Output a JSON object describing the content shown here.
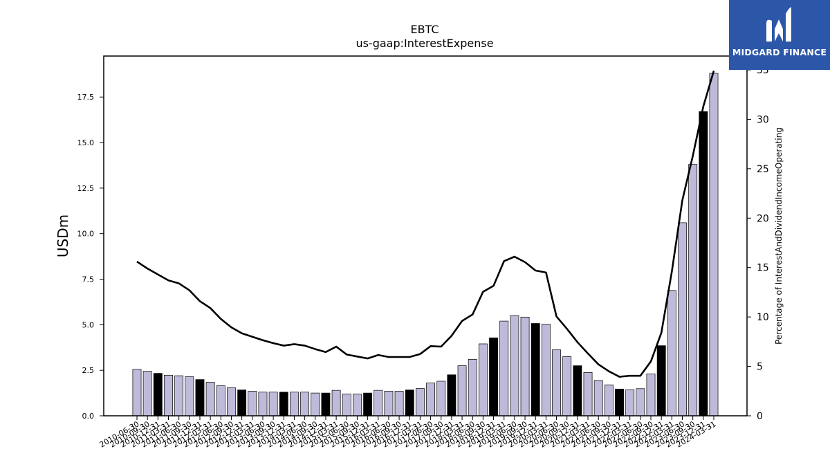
{
  "chart_data": {
    "type": "bar",
    "title": "EBTC",
    "subtitle": "us-gaap:InterestExpense",
    "ylabel": "USDm",
    "y2label": "Percentage of InterestAndDividendIncomeOperating",
    "ylim": [
      0,
      19.75
    ],
    "y2lim": [
      0,
      36.4
    ],
    "yticks": [
      "0.0",
      "2.5",
      "5.0",
      "7.5",
      "10.0",
      "12.5",
      "15.0",
      "17.5"
    ],
    "y2ticks": [
      "0",
      "5",
      "10",
      "15",
      "20",
      "25",
      "30",
      "35"
    ],
    "categories": [
      "2010-06-30",
      "2010-09-30",
      "2010-12-31",
      "2011-03-31",
      "2011-06-30",
      "2011-09-30",
      "2011-12-31",
      "2012-03-31",
      "2012-06-30",
      "2012-09-30",
      "2012-12-31",
      "2013-03-31",
      "2013-06-30",
      "2013-09-30",
      "2013-12-31",
      "2014-03-31",
      "2014-06-30",
      "2014-09-30",
      "2014-12-31",
      "2015-03-31",
      "2015-06-30",
      "2015-09-30",
      "2015-12-31",
      "2016-03-31",
      "2016-06-30",
      "2016-09-30",
      "2016-12-31",
      "2017-03-31",
      "2017-06-30",
      "2017-09-30",
      "2017-12-31",
      "2018-03-31",
      "2018-06-30",
      "2018-09-30",
      "2018-12-31",
      "2019-03-31",
      "2019-06-30",
      "2019-09-30",
      "2019-12-31",
      "2020-03-31",
      "2020-06-30",
      "2020-09-30",
      "2020-12-31",
      "2021-03-31",
      "2021-06-30",
      "2021-09-30",
      "2021-12-31",
      "2022-03-31",
      "2022-06-30",
      "2022-09-30",
      "2022-12-31",
      "2023-03-31",
      "2023-06-30",
      "2023-09-30",
      "2023-12-31",
      "2024-03-31"
    ],
    "series": [
      {
        "type": "bar",
        "values": [
          2.55,
          2.45,
          2.33,
          2.23,
          2.2,
          2.15,
          1.99,
          1.84,
          1.65,
          1.54,
          1.42,
          1.35,
          1.3,
          1.3,
          1.3,
          1.3,
          1.3,
          1.25,
          1.25,
          1.4,
          1.2,
          1.2,
          1.25,
          1.4,
          1.35,
          1.35,
          1.42,
          1.5,
          1.8,
          1.9,
          2.25,
          2.75,
          3.1,
          3.95,
          4.28,
          5.2,
          5.5,
          5.42,
          5.07,
          5.03,
          3.62,
          3.25,
          2.75,
          2.38,
          1.94,
          1.7,
          1.47,
          1.43,
          1.49,
          2.3,
          3.85,
          6.88,
          10.6,
          13.8,
          16.7,
          18.8
        ],
        "highlight_every": 4,
        "highlight_offset": 2,
        "color": "#bebad9",
        "highlight_color": "#000000"
      },
      {
        "type": "line",
        "axis": "right",
        "values": [
          15.6,
          14.9,
          14.3,
          13.7,
          13.4,
          12.7,
          11.6,
          10.9,
          9.8,
          8.95,
          8.35,
          8.0,
          7.65,
          7.35,
          7.1,
          7.25,
          7.1,
          6.75,
          6.45,
          7.0,
          6.2,
          6.0,
          5.8,
          6.15,
          5.95,
          5.95,
          5.95,
          6.25,
          7.05,
          7.0,
          8.1,
          9.6,
          10.25,
          12.55,
          13.15,
          15.65,
          16.1,
          15.55,
          14.7,
          14.5,
          10.05,
          8.8,
          7.45,
          6.3,
          5.2,
          4.5,
          3.95,
          4.05,
          4.05,
          5.5,
          8.4,
          14.6,
          21.8,
          26.3,
          31.3,
          34.9
        ],
        "color": "#000000"
      }
    ],
    "grid": false
  },
  "logo": {
    "text": "MIDGARD FINANCE",
    "bg": "#2c57a8"
  }
}
